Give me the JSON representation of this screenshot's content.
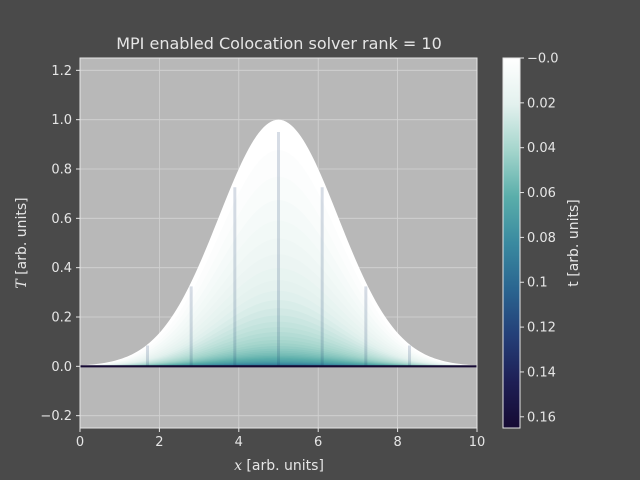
{
  "chart_data": {
    "type": "area",
    "title": "MPI enabled Colocation solver rank = 10",
    "xlabel": "x [arb. units]",
    "ylabel": "T [arb. units]",
    "colorbar_label": "t [arb. units]",
    "xlim": [
      0,
      10
    ],
    "ylim": [
      -0.25,
      1.25
    ],
    "xticks": [
      0,
      2,
      4,
      6,
      8,
      10
    ],
    "yticks": [
      -0.2,
      0.0,
      0.2,
      0.4,
      0.6,
      0.8,
      1.0,
      1.2
    ],
    "colorbar_ticks": [
      "-0.0",
      "0.02",
      "0.04",
      "0.06",
      "0.08",
      "0.1",
      "0.12",
      "0.14",
      "0.16"
    ],
    "colorbar_range": [
      0.0,
      0.165
    ],
    "colormap": [
      "#ffffff",
      "#e3f1ee",
      "#a4d5cc",
      "#5aaeaa",
      "#3a8aa0",
      "#2a6590",
      "#243f78",
      "#1e1f55",
      "#160a33"
    ],
    "grid": true,
    "initial_condition": {
      "shape": "gaussian",
      "center": 5,
      "peak": 1.0,
      "sigma": 1.5
    },
    "time_snapshots": [
      0.0,
      0.02,
      0.04,
      0.06,
      0.08,
      0.1,
      0.12,
      0.14,
      0.16
    ],
    "subdomain_boundaries": [
      1.7,
      2.8,
      3.9,
      5.0,
      6.1,
      7.2,
      8.3
    ]
  },
  "colors": {
    "figure_bg": "#4a4a4a",
    "axes_bg": "#b8b8b8",
    "text": "#e6e6e6"
  }
}
